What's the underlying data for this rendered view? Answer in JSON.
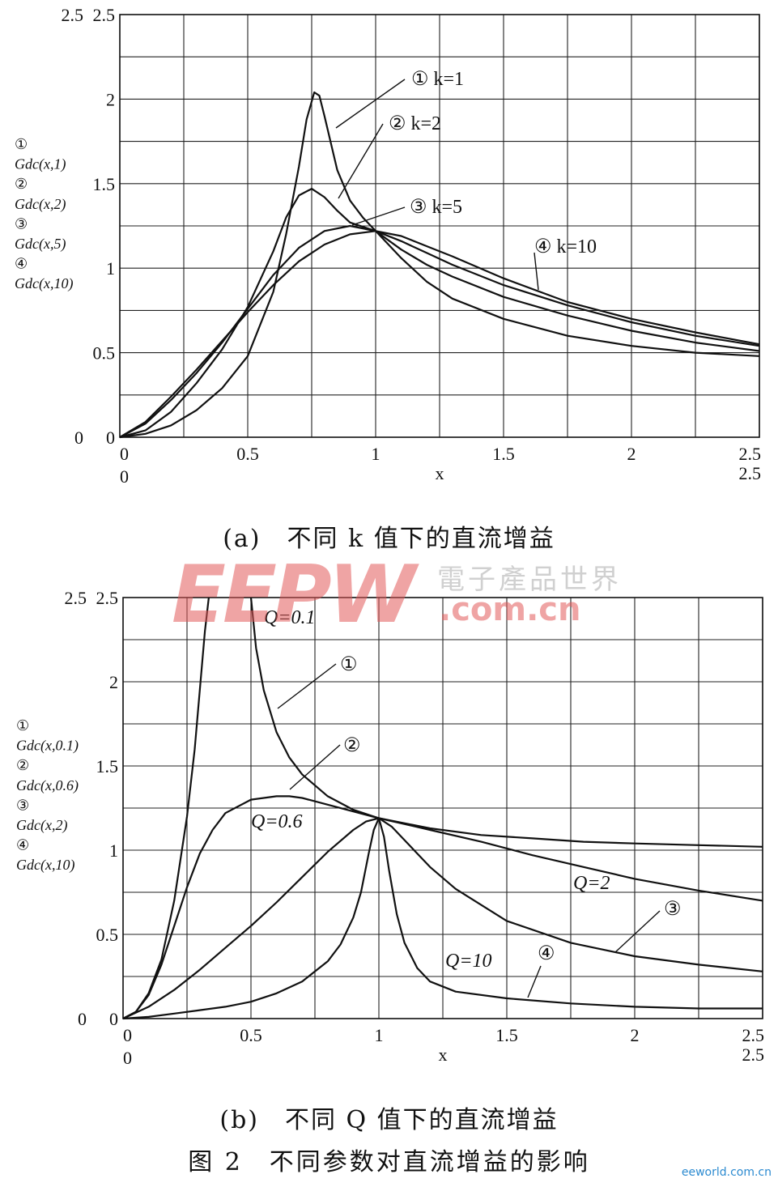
{
  "chart_data": [
    {
      "type": "line",
      "xlabel": "x",
      "xlim": [
        0,
        2.5
      ],
      "ylim": [
        0,
        2.5
      ],
      "x_ticks": [
        "0",
        "0.5",
        "1",
        "1.5",
        "2",
        "2.5"
      ],
      "y_ticks": [
        "0",
        "0.5",
        "1",
        "1.5",
        "2",
        "2.5"
      ],
      "corner_top_label": "2.5",
      "corner_bottom_label": "0",
      "x_extra_labels": [
        "0",
        "2.5"
      ],
      "grid": true,
      "ylabel_lines": [
        "①",
        "Gdc(x,1)",
        "②",
        "Gdc(x,2)",
        "③",
        "Gdc(x,5)",
        "④",
        "Gdc(x,10)"
      ],
      "series": [
        {
          "name": "① k=1",
          "x": [
            0,
            0.1,
            0.2,
            0.3,
            0.4,
            0.5,
            0.6,
            0.65,
            0.7,
            0.73,
            0.76,
            0.78,
            0.8,
            0.85,
            0.9,
            0.95,
            1,
            1.1,
            1.2,
            1.3,
            1.5,
            1.75,
            2,
            2.25,
            2.5
          ],
          "y": [
            0,
            0.02,
            0.07,
            0.16,
            0.29,
            0.48,
            0.86,
            1.2,
            1.6,
            1.88,
            2.04,
            2.02,
            1.9,
            1.58,
            1.4,
            1.3,
            1.22,
            1.06,
            0.92,
            0.82,
            0.7,
            0.6,
            0.54,
            0.5,
            0.48
          ]
        },
        {
          "name": "② k=2",
          "x": [
            0,
            0.1,
            0.2,
            0.3,
            0.4,
            0.5,
            0.6,
            0.65,
            0.7,
            0.75,
            0.8,
            0.85,
            0.9,
            1,
            1.1,
            1.2,
            1.3,
            1.5,
            1.75,
            2,
            2.25,
            2.5
          ],
          "y": [
            0,
            0.04,
            0.15,
            0.32,
            0.52,
            0.77,
            1.1,
            1.3,
            1.43,
            1.47,
            1.42,
            1.34,
            1.27,
            1.22,
            1.11,
            1.02,
            0.95,
            0.83,
            0.72,
            0.63,
            0.56,
            0.51
          ]
        },
        {
          "name": "③ k=5",
          "x": [
            0,
            0.1,
            0.2,
            0.3,
            0.4,
            0.5,
            0.6,
            0.7,
            0.8,
            0.9,
            1,
            1.1,
            1.2,
            1.3,
            1.5,
            1.75,
            2,
            2.25,
            2.5
          ],
          "y": [
            0,
            0.08,
            0.22,
            0.38,
            0.56,
            0.76,
            0.96,
            1.12,
            1.22,
            1.25,
            1.22,
            1.16,
            1.09,
            1.02,
            0.9,
            0.78,
            0.68,
            0.6,
            0.54
          ]
        },
        {
          "name": "④ k=10",
          "x": [
            0,
            0.1,
            0.2,
            0.3,
            0.4,
            0.5,
            0.6,
            0.7,
            0.8,
            0.9,
            1,
            1.1,
            1.2,
            1.3,
            1.5,
            1.75,
            2,
            2.25,
            2.5
          ],
          "y": [
            0,
            0.09,
            0.24,
            0.4,
            0.57,
            0.74,
            0.9,
            1.04,
            1.14,
            1.2,
            1.22,
            1.19,
            1.13,
            1.07,
            0.94,
            0.8,
            0.7,
            0.62,
            0.55
          ]
        }
      ],
      "annotations": [
        "① k=1",
        "② k=2",
        "③ k=5",
        "④ k=10"
      ]
    },
    {
      "type": "line",
      "xlabel": "x",
      "xlim": [
        0,
        2.5
      ],
      "ylim": [
        0,
        2.5
      ],
      "x_ticks": [
        "0",
        "0.5",
        "1",
        "1.5",
        "2",
        "2.5"
      ],
      "y_ticks": [
        "0",
        "0.5",
        "1",
        "1.5",
        "2",
        "2.5"
      ],
      "corner_top_label": "2.5",
      "corner_bottom_label": "0",
      "x_extra_labels": [
        "0",
        "2.5"
      ],
      "grid": true,
      "ylabel_lines": [
        "①",
        "Gdc(x,0.1)",
        "②",
        "Gdc(x,0.6)",
        "③",
        "Gdc(x,2)",
        "④",
        "Gdc(x,10)"
      ],
      "series": [
        {
          "name": "① Q=0.1 (left)",
          "x": [
            0,
            0.05,
            0.1,
            0.15,
            0.2,
            0.25,
            0.28,
            0.3,
            0.32,
            0.335
          ],
          "y": [
            0,
            0.04,
            0.15,
            0.35,
            0.7,
            1.2,
            1.6,
            1.95,
            2.3,
            2.5
          ]
        },
        {
          "name": "① Q=0.1",
          "x": [
            0.5,
            0.52,
            0.55,
            0.6,
            0.65,
            0.7,
            0.8,
            0.9,
            1,
            1.2,
            1.4,
            1.6,
            1.8,
            2,
            2.25,
            2.5
          ],
          "y": [
            2.5,
            2.2,
            1.95,
            1.7,
            1.55,
            1.45,
            1.32,
            1.24,
            1.19,
            1.13,
            1.09,
            1.07,
            1.05,
            1.04,
            1.03,
            1.02
          ]
        },
        {
          "name": "② Q=0.6",
          "x": [
            0,
            0.05,
            0.1,
            0.15,
            0.2,
            0.25,
            0.3,
            0.35,
            0.4,
            0.5,
            0.6,
            0.65,
            0.7,
            0.8,
            0.9,
            1,
            1.2,
            1.4,
            1.6,
            1.8,
            2,
            2.25,
            2.5
          ],
          "y": [
            0,
            0.04,
            0.14,
            0.32,
            0.55,
            0.78,
            0.98,
            1.12,
            1.22,
            1.3,
            1.32,
            1.32,
            1.31,
            1.27,
            1.23,
            1.19,
            1.12,
            1.05,
            0.97,
            0.9,
            0.83,
            0.76,
            0.7
          ]
        },
        {
          "name": "③ Q=2",
          "x": [
            0,
            0.1,
            0.2,
            0.3,
            0.4,
            0.5,
            0.6,
            0.7,
            0.8,
            0.9,
            0.95,
            1,
            1.05,
            1.1,
            1.2,
            1.3,
            1.5,
            1.75,
            2,
            2.25,
            2.5
          ],
          "y": [
            0,
            0.07,
            0.17,
            0.29,
            0.42,
            0.55,
            0.69,
            0.84,
            0.99,
            1.12,
            1.17,
            1.19,
            1.14,
            1.06,
            0.9,
            0.77,
            0.58,
            0.45,
            0.37,
            0.32,
            0.28
          ]
        },
        {
          "name": "④ Q=10",
          "x": [
            0,
            0.1,
            0.2,
            0.3,
            0.4,
            0.5,
            0.6,
            0.7,
            0.8,
            0.85,
            0.9,
            0.93,
            0.96,
            0.98,
            1,
            1.02,
            1.04,
            1.07,
            1.1,
            1.15,
            1.2,
            1.3,
            1.5,
            1.75,
            2,
            2.25,
            2.5
          ],
          "y": [
            0,
            0.01,
            0.03,
            0.05,
            0.07,
            0.1,
            0.15,
            0.22,
            0.34,
            0.44,
            0.6,
            0.75,
            0.98,
            1.12,
            1.19,
            1.08,
            0.88,
            0.62,
            0.45,
            0.3,
            0.22,
            0.16,
            0.12,
            0.09,
            0.07,
            0.06,
            0.06
          ]
        }
      ],
      "annotations": [
        "Q=0.1",
        "①",
        "②",
        "Q=0.6",
        "Q=2",
        "③",
        "Q=10",
        "④"
      ]
    }
  ],
  "captions": {
    "a": "(a)　不同 k 值下的直流增益",
    "b": "(b)　不同 Q 值下的直流增益",
    "figure": "图 2　不同参数对直流增益的影响"
  },
  "watermark": {
    "logo": "EEPW",
    "cn": "電子產品世界",
    "domain": ".com.cn",
    "corner": "eeworld.com.cn"
  }
}
